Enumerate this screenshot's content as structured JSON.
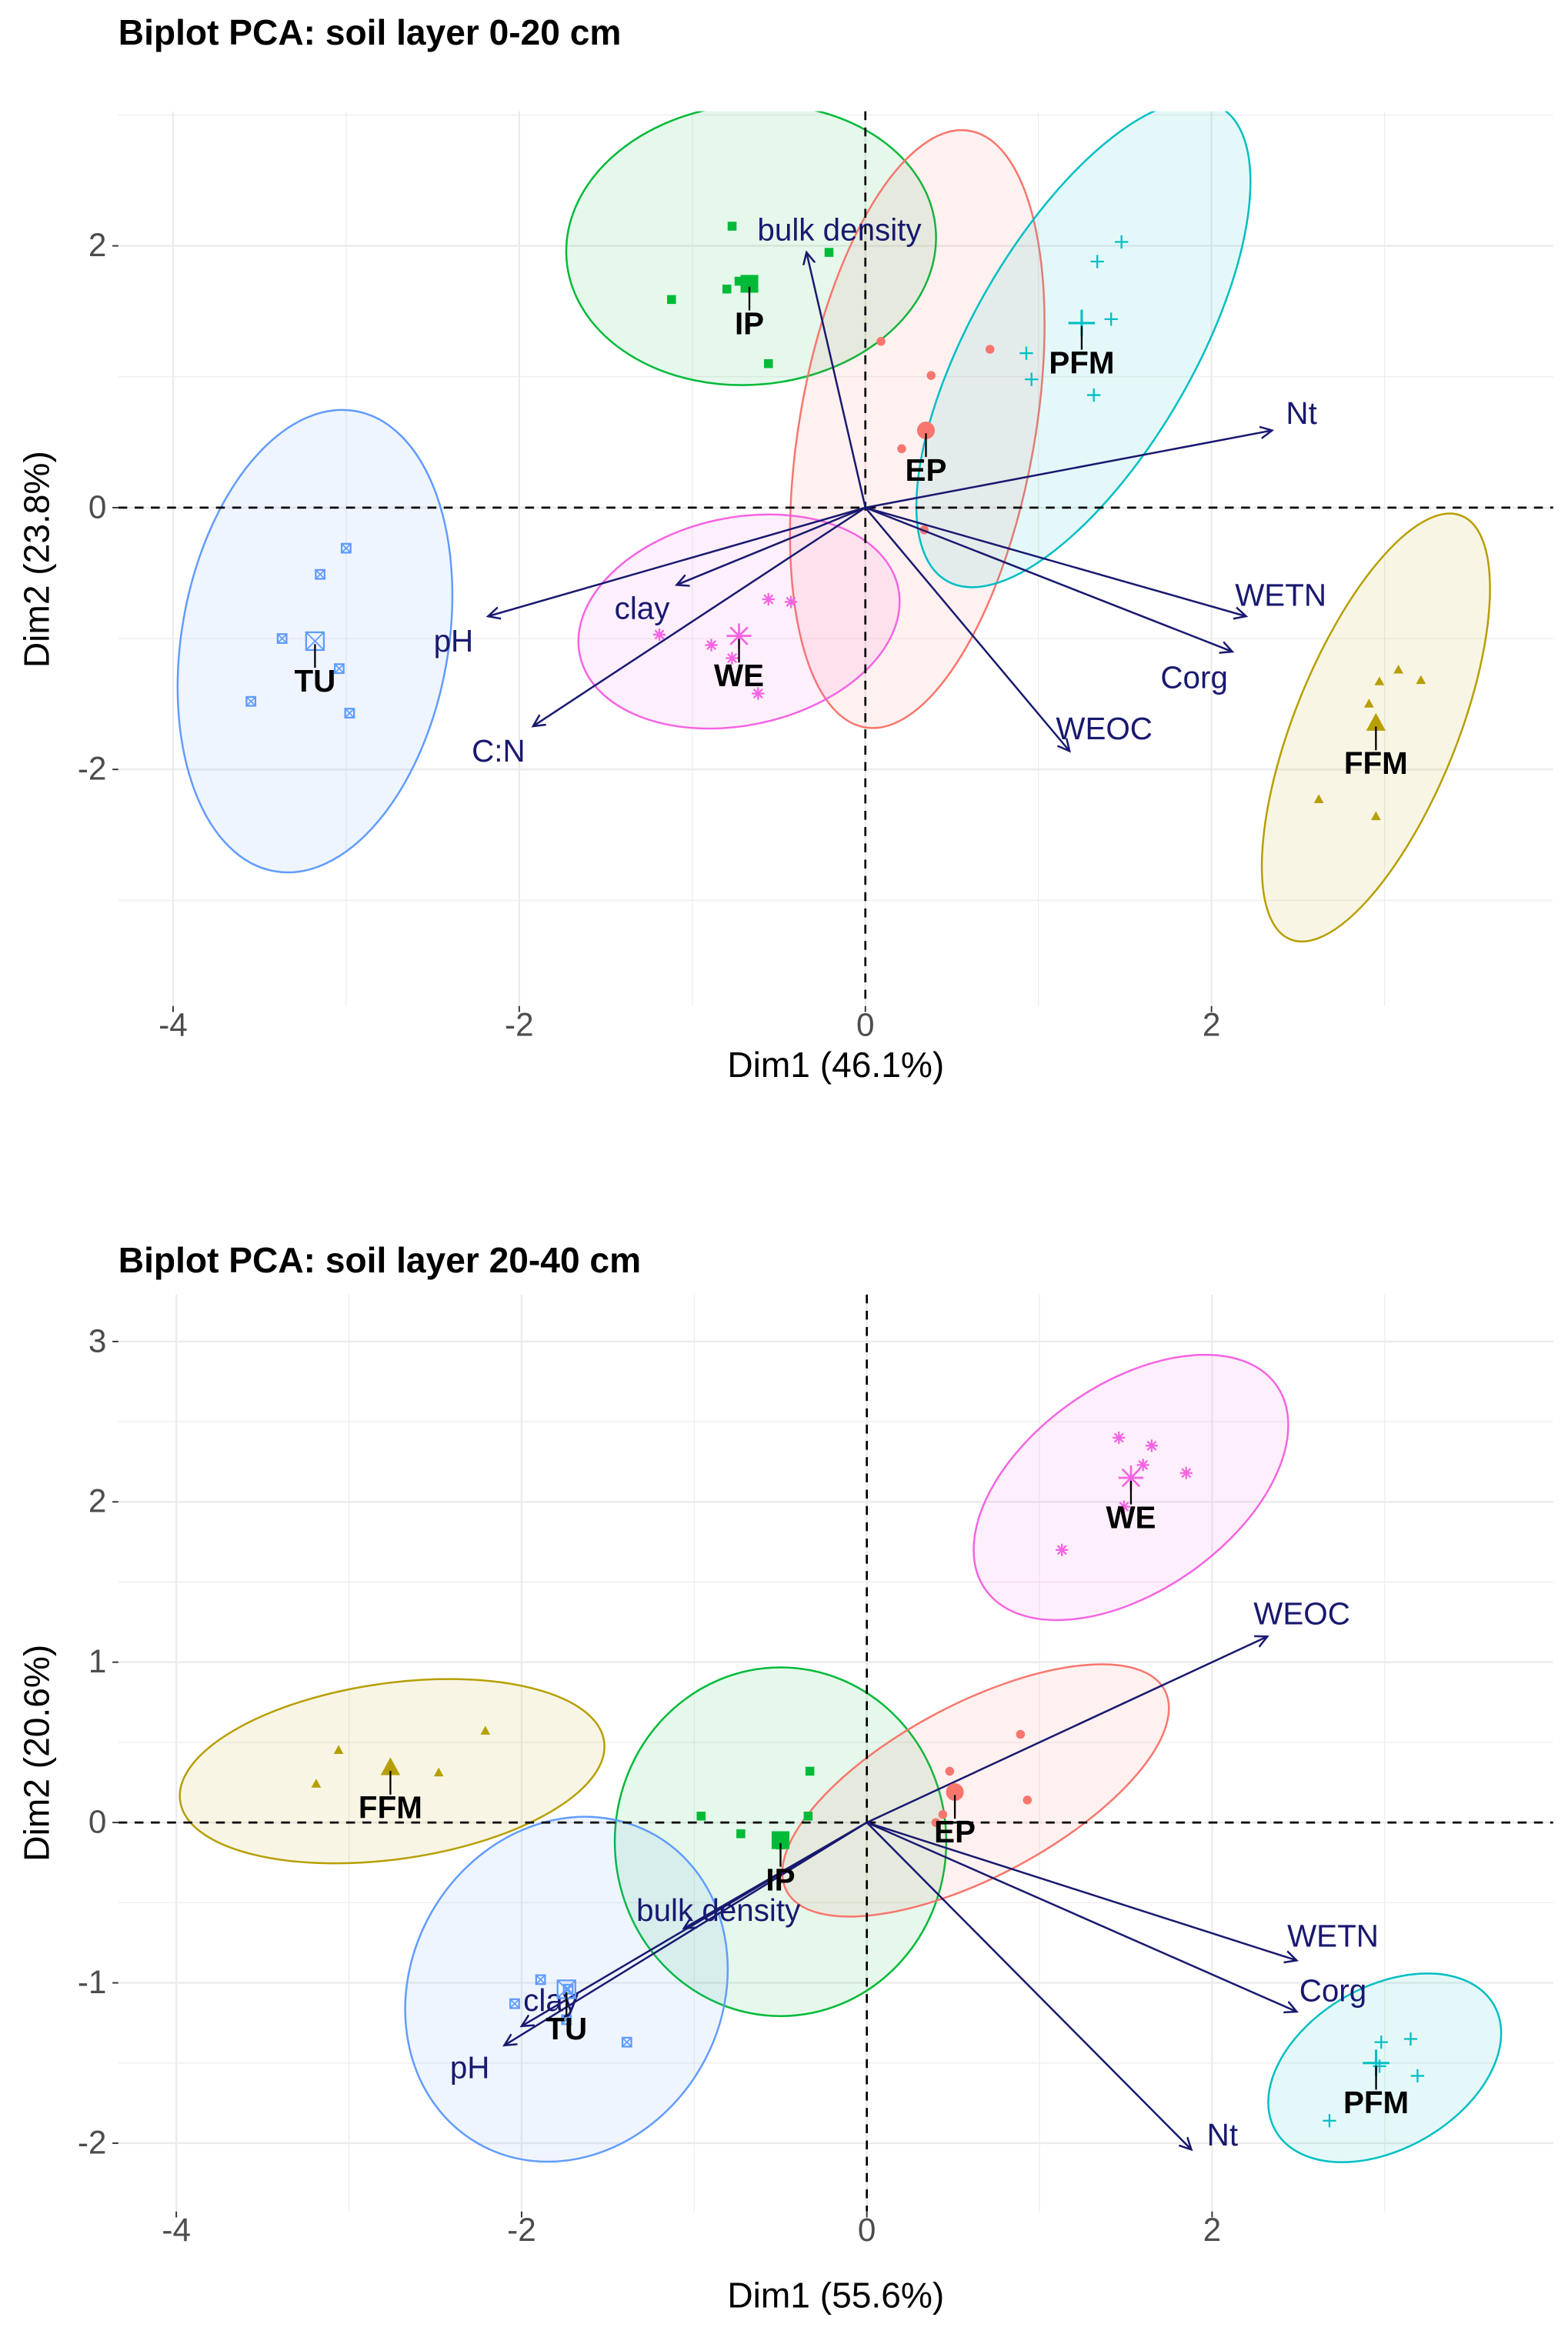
{
  "colors": {
    "IP": "#00BA38",
    "EP": "#F8766D",
    "PFM": "#00BFC4",
    "TU": "#619CFF",
    "WE": "#F564E3",
    "FFM": "#B79F00",
    "arrow": "#191970",
    "grid": "#ebebeb"
  },
  "chart_data": [
    {
      "type": "scatter",
      "title": "Biplot PCA: soil layer 0-20 cm",
      "xlabel": "Dim1 (46.1%)",
      "ylabel": "Dim2 (23.8%)",
      "xlim": [
        -4.32,
        3.97
      ],
      "ylim": [
        -3.81,
        3.03
      ],
      "xticks": [
        -4,
        -2,
        0,
        2
      ],
      "yticks": [
        -2,
        0,
        2
      ],
      "grid": true,
      "groups": [
        {
          "name": "IP",
          "shape": "square",
          "centroid": [
            -0.67,
            1.71
          ],
          "points": [
            [
              -0.77,
              2.15
            ],
            [
              -1.12,
              1.59
            ],
            [
              -0.8,
              1.67
            ],
            [
              -0.73,
              1.73
            ],
            [
              -0.56,
              1.1
            ],
            [
              -0.21,
              1.95
            ]
          ],
          "ellipse": {
            "center": [
              -0.66,
              2.01
            ],
            "a": 1.07,
            "b": 0.81,
            "angle": -5
          }
        },
        {
          "name": "EP",
          "shape": "circle",
          "centroid": [
            0.35,
            0.59
          ],
          "points": [
            [
              0.09,
              1.27
            ],
            [
              0.38,
              1.01
            ],
            [
              0.72,
              1.21
            ],
            [
              0.21,
              0.45
            ],
            [
              0.34,
              -0.17
            ]
          ],
          "ellipse": {
            "center": [
              0.3,
              0.6
            ],
            "a": 0.68,
            "b": 1.75,
            "angle": 10
          }
        },
        {
          "name": "PFM",
          "shape": "plus",
          "centroid": [
            1.25,
            1.41
          ],
          "points": [
            [
              1.48,
              2.03
            ],
            [
              1.34,
              1.88
            ],
            [
              1.42,
              1.44
            ],
            [
              0.93,
              1.18
            ],
            [
              0.96,
              0.98
            ],
            [
              1.32,
              0.86
            ]
          ],
          "ellipse": {
            "center": [
              1.26,
              1.25
            ],
            "a": 0.64,
            "b": 1.58,
            "angle": 30
          }
        },
        {
          "name": "TU",
          "shape": "boxcross",
          "centroid": [
            -3.18,
            -1.02
          ],
          "points": [
            [
              -3.0,
              -0.31
            ],
            [
              -3.15,
              -0.51
            ],
            [
              -3.37,
              -1.0
            ],
            [
              -3.04,
              -1.23
            ],
            [
              -3.55,
              -1.48
            ],
            [
              -2.98,
              -1.57
            ]
          ],
          "ellipse": {
            "center": [
              -3.18,
              -1.02
            ],
            "a": 0.77,
            "b": 1.35,
            "angle": 10
          }
        },
        {
          "name": "WE",
          "shape": "asterisk",
          "centroid": [
            -0.73,
            -0.98
          ],
          "points": [
            [
              -1.19,
              -0.97
            ],
            [
              -0.89,
              -1.05
            ],
            [
              -0.56,
              -0.7
            ],
            [
              -0.43,
              -0.72
            ],
            [
              -0.62,
              -1.42
            ],
            [
              -0.77,
              -1.15
            ]
          ],
          "ellipse": {
            "center": [
              -0.73,
              -0.87
            ],
            "a": 0.94,
            "b": 0.6,
            "angle": -12
          }
        },
        {
          "name": "FFM",
          "shape": "triangle",
          "centroid": [
            2.95,
            -1.65
          ],
          "points": [
            [
              3.08,
              -1.24
            ],
            [
              2.97,
              -1.33
            ],
            [
              3.21,
              -1.32
            ],
            [
              2.91,
              -1.5
            ],
            [
              2.62,
              -2.23
            ],
            [
              2.95,
              -2.36
            ]
          ],
          "ellipse": {
            "center": [
              2.95,
              -1.68
            ],
            "a": 0.47,
            "b": 1.32,
            "angle": 22
          }
        }
      ],
      "variables": [
        {
          "name": "bulk density",
          "end": [
            -0.34,
            1.95
          ],
          "label_at": [
            -0.15,
            2.12
          ]
        },
        {
          "name": "Nt",
          "end": [
            2.35,
            0.59
          ],
          "label_at": [
            2.52,
            0.72
          ]
        },
        {
          "name": "WETN",
          "end": [
            2.2,
            -0.83
          ],
          "label_at": [
            2.4,
            -0.67
          ]
        },
        {
          "name": "Corg",
          "end": [
            2.12,
            -1.1
          ],
          "label_at": [
            1.9,
            -1.3
          ]
        },
        {
          "name": "WEOC",
          "end": [
            1.18,
            -1.86
          ],
          "label_at": [
            1.38,
            -1.69
          ]
        },
        {
          "name": "pH",
          "end": [
            -2.18,
            -0.83
          ],
          "label_at": [
            -2.38,
            -1.02
          ]
        },
        {
          "name": "clay",
          "end": [
            -1.09,
            -0.59
          ],
          "label_at": [
            -1.29,
            -0.77
          ]
        },
        {
          "name": "C:N",
          "end": [
            -1.92,
            -1.67
          ],
          "label_at": [
            -2.12,
            -1.86
          ]
        }
      ]
    },
    {
      "type": "scatter",
      "title": "Biplot PCA: soil layer 20-40 cm",
      "xlabel": "Dim1 (55.6%)",
      "ylabel": "Dim2 (20.6%)",
      "xlim": [
        -4.34,
        3.98
      ],
      "ylim": [
        -2.43,
        3.29
      ],
      "xticks": [
        -4,
        -2,
        0,
        2
      ],
      "yticks": [
        -2,
        -1,
        0,
        1,
        2,
        3
      ],
      "grid": true,
      "groups": [
        {
          "name": "WE",
          "shape": "asterisk",
          "centroid": [
            1.53,
            2.15
          ],
          "points": [
            [
              1.46,
              2.4
            ],
            [
              1.65,
              2.35
            ],
            [
              1.6,
              2.23
            ],
            [
              1.85,
              2.18
            ],
            [
              1.49,
              1.97
            ],
            [
              1.13,
              1.7
            ]
          ],
          "ellipse": {
            "center": [
              1.53,
              2.09
            ],
            "a": 1.03,
            "b": 0.6,
            "angle": -35
          }
        },
        {
          "name": "FFM",
          "shape": "triangle",
          "centroid": [
            -2.76,
            0.34
          ],
          "points": [
            [
              -3.19,
              0.24
            ],
            [
              -3.06,
              0.45
            ],
            [
              -2.77,
              0.33
            ],
            [
              -2.48,
              0.31
            ],
            [
              -2.21,
              0.57
            ]
          ],
          "ellipse": {
            "center": [
              -2.75,
              0.32
            ],
            "a": 1.24,
            "b": 0.51,
            "angle": -8
          }
        },
        {
          "name": "IP",
          "shape": "square",
          "centroid": [
            -0.5,
            -0.11
          ],
          "points": [
            [
              -0.96,
              0.04
            ],
            [
              -0.33,
              0.32
            ],
            [
              -0.34,
              0.04
            ],
            [
              -0.73,
              -0.07
            ],
            [
              -0.5,
              -0.14
            ]
          ],
          "ellipse": {
            "center": [
              -0.5,
              -0.12
            ],
            "a": 0.96,
            "b": 1.01,
            "angle": 0
          }
        },
        {
          "name": "EP",
          "shape": "circle",
          "centroid": [
            0.51,
            0.19
          ],
          "points": [
            [
              0.89,
              0.55
            ],
            [
              0.93,
              0.14
            ],
            [
              0.48,
              0.32
            ],
            [
              0.44,
              0.05
            ],
            [
              0.4,
              0.0
            ]
          ],
          "ellipse": {
            "center": [
              0.63,
              0.2
            ],
            "a": 1.24,
            "b": 0.5,
            "angle": -28
          }
        },
        {
          "name": "TU",
          "shape": "boxcross",
          "centroid": [
            -1.74,
            -1.04
          ],
          "points": [
            [
              -1.89,
              -0.98
            ],
            [
              -2.04,
              -1.13
            ],
            [
              -1.73,
              -1.04
            ],
            [
              -1.39,
              -1.37
            ],
            [
              -1.74,
              -1.23
            ]
          ],
          "ellipse": {
            "center": [
              -1.74,
              -1.04
            ],
            "a": 0.9,
            "b": 1.03,
            "angle": 30
          }
        },
        {
          "name": "PFM",
          "shape": "plus",
          "centroid": [
            2.95,
            -1.5
          ],
          "points": [
            [
              3.15,
              -1.35
            ],
            [
              2.98,
              -1.37
            ],
            [
              2.97,
              -1.52
            ],
            [
              3.19,
              -1.58
            ],
            [
              2.68,
              -1.86
            ]
          ],
          "ellipse": {
            "center": [
              3.0,
              -1.53
            ],
            "a": 0.73,
            "b": 0.47,
            "angle": -30
          }
        }
      ],
      "variables": [
        {
          "name": "WEOC",
          "end": [
            2.32,
            1.16
          ],
          "label_at": [
            2.52,
            1.3
          ]
        },
        {
          "name": "WETN",
          "end": [
            2.49,
            -0.86
          ],
          "label_at": [
            2.7,
            -0.71
          ]
        },
        {
          "name": "Corg",
          "end": [
            2.49,
            -1.18
          ],
          "label_at": [
            2.7,
            -1.05
          ]
        },
        {
          "name": "Nt",
          "end": [
            1.88,
            -2.04
          ],
          "label_at": [
            2.06,
            -1.95
          ]
        },
        {
          "name": "pH",
          "end": [
            -2.1,
            -1.39
          ],
          "label_at": [
            -2.3,
            -1.53
          ]
        },
        {
          "name": "clay",
          "end": [
            -2.0,
            -1.27
          ],
          "label_at": [
            -1.83,
            -1.11
          ]
        },
        {
          "name": "bulk density",
          "end": [
            -1.06,
            -0.66
          ],
          "label_at": [
            -0.86,
            -0.55
          ]
        }
      ]
    }
  ]
}
